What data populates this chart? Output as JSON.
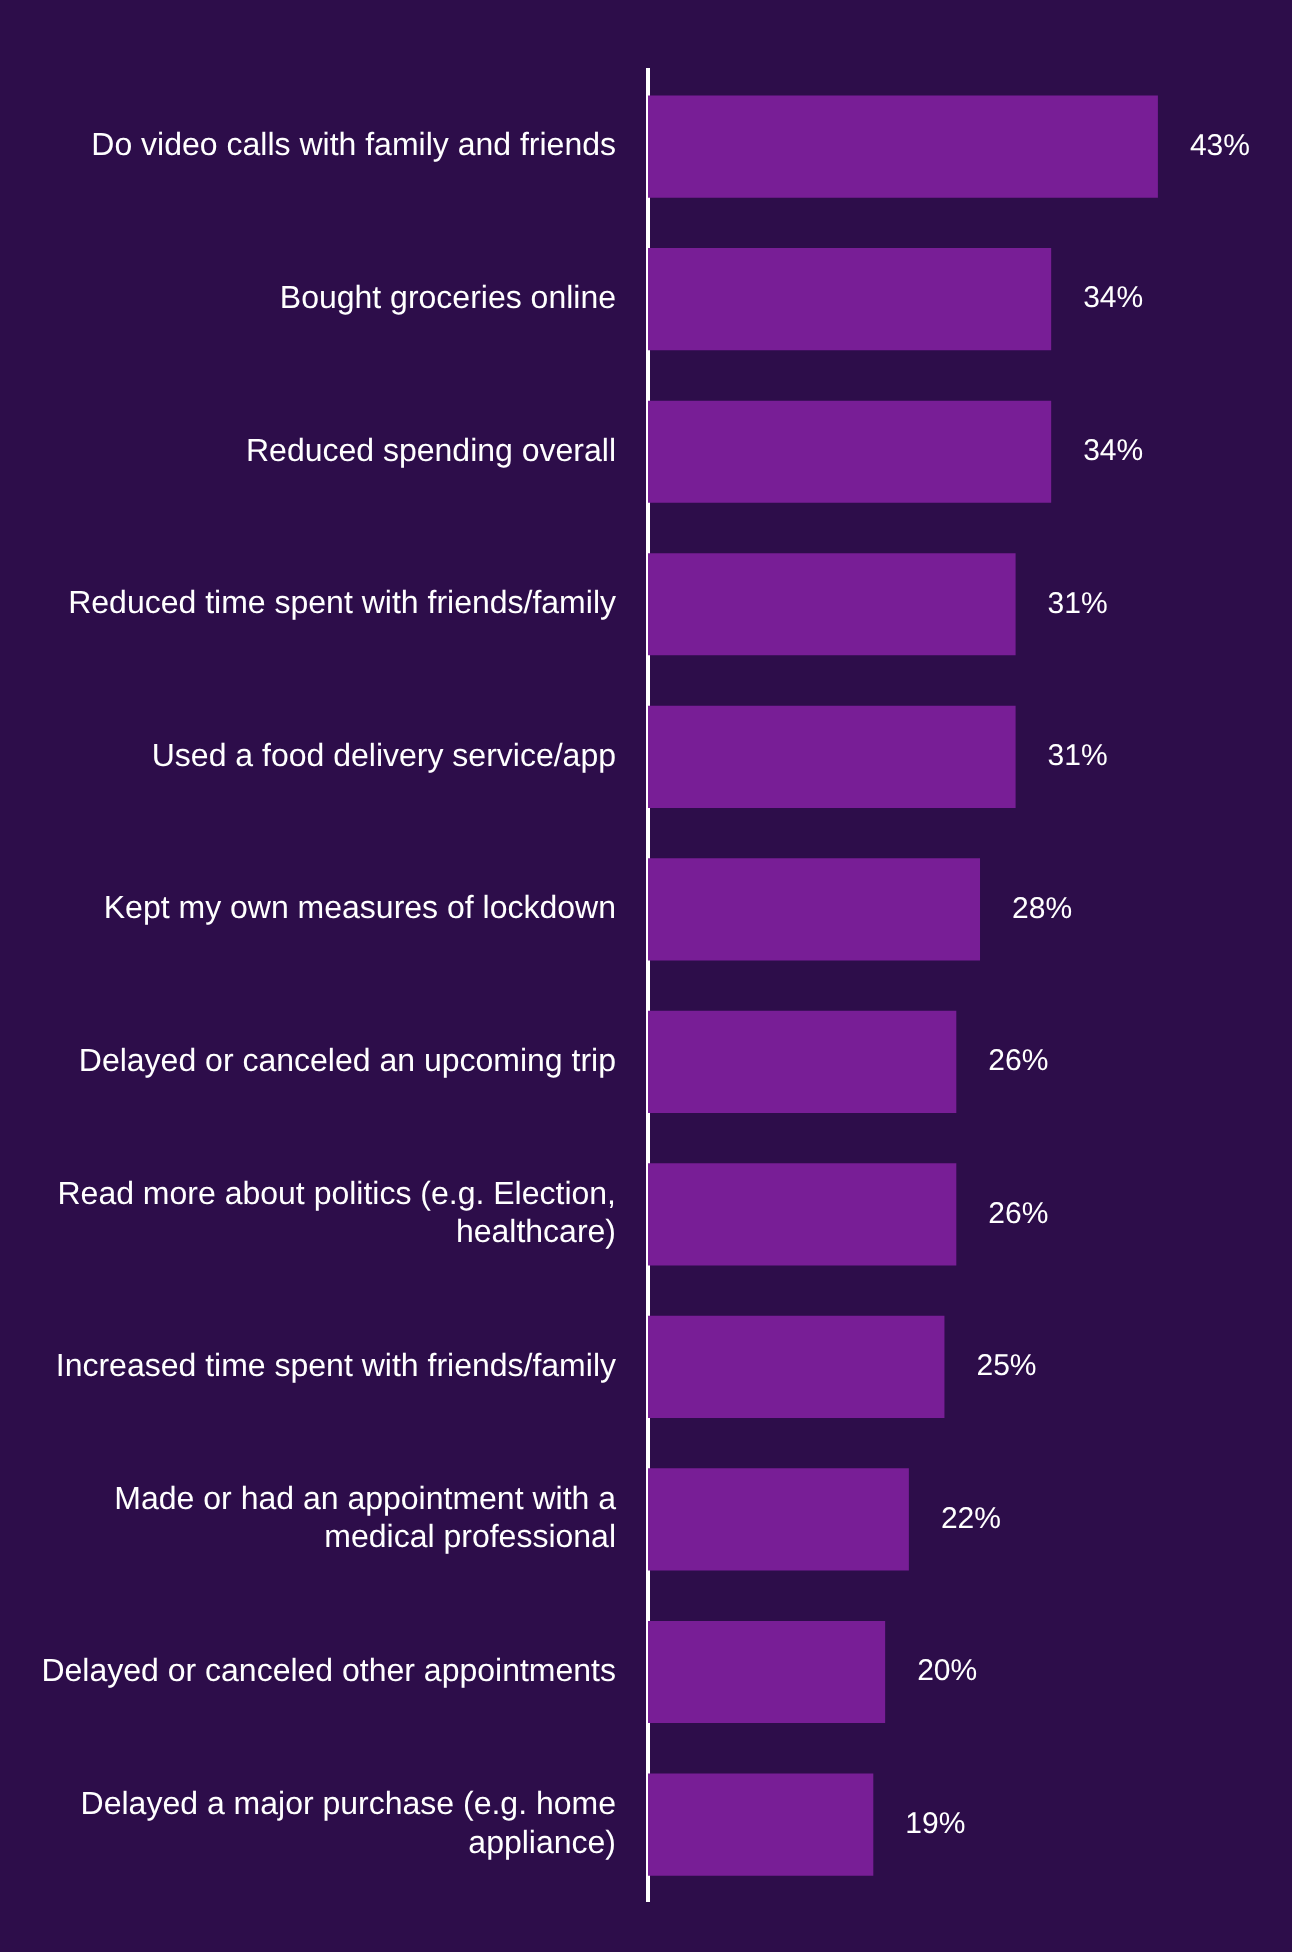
{
  "chart_data": {
    "type": "bar",
    "orientation": "horizontal",
    "categories": [
      "Do video calls with family and friends",
      "Bought groceries online",
      "Reduced spending overall",
      "Reduced time spent with friends/family",
      "Used a food delivery service/app",
      "Kept my own measures of lockdown",
      "Delayed or canceled an upcoming trip",
      "Read more about politics (e.g. Election, healthcare)",
      "Increased time spent with friends/family",
      "Made or had an appointment with a medical professional",
      "Delayed or canceled other appointments",
      "Delayed a major purchase (e.g. home appliance)"
    ],
    "values": [
      43,
      34,
      34,
      31,
      31,
      28,
      26,
      26,
      25,
      22,
      20,
      19
    ],
    "value_labels": [
      "43%",
      "34%",
      "34%",
      "31%",
      "31%",
      "28%",
      "26%",
      "26%",
      "25%",
      "22%",
      "20%",
      "19%"
    ],
    "color": "#781e96",
    "grid": false,
    "legend": false,
    "tick_labels": "y"
  }
}
